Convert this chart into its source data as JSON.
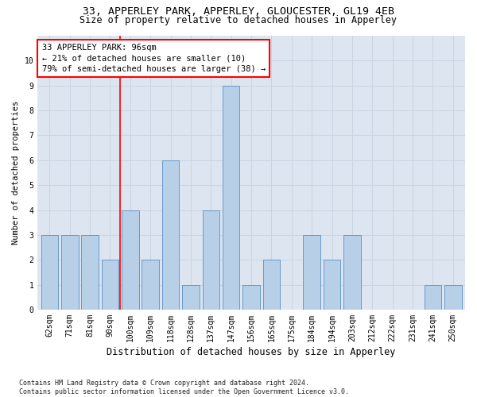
{
  "title": "33, APPERLEY PARK, APPERLEY, GLOUCESTER, GL19 4EB",
  "subtitle": "Size of property relative to detached houses in Apperley",
  "xlabel": "Distribution of detached houses by size in Apperley",
  "ylabel": "Number of detached properties",
  "categories": [
    "62sqm",
    "71sqm",
    "81sqm",
    "90sqm",
    "100sqm",
    "109sqm",
    "118sqm",
    "128sqm",
    "137sqm",
    "147sqm",
    "156sqm",
    "165sqm",
    "175sqm",
    "184sqm",
    "194sqm",
    "203sqm",
    "212sqm",
    "222sqm",
    "231sqm",
    "241sqm",
    "250sqm"
  ],
  "values": [
    3,
    3,
    3,
    2,
    4,
    2,
    6,
    1,
    4,
    9,
    1,
    2,
    0,
    3,
    2,
    3,
    0,
    0,
    0,
    1,
    1
  ],
  "bar_color": "#b8cfe8",
  "bar_edge_color": "#6699cc",
  "grid_color": "#c8d4e0",
  "background_color": "#dde6f0",
  "red_line_bar_index": 4,
  "ylim": [
    0,
    11
  ],
  "yticks": [
    0,
    1,
    2,
    3,
    4,
    5,
    6,
    7,
    8,
    9,
    10,
    11
  ],
  "annotation_line1": "33 APPERLEY PARK: 96sqm",
  "annotation_line2": "← 21% of detached houses are smaller (10)",
  "annotation_line3": "79% of semi-detached houses are larger (38) →",
  "footer": "Contains HM Land Registry data © Crown copyright and database right 2024.\nContains public sector information licensed under the Open Government Licence v3.0.",
  "title_fontsize": 9.5,
  "subtitle_fontsize": 8.5,
  "xlabel_fontsize": 8.5,
  "ylabel_fontsize": 7.5,
  "tick_fontsize": 7,
  "annotation_fontsize": 7.5,
  "footer_fontsize": 6
}
